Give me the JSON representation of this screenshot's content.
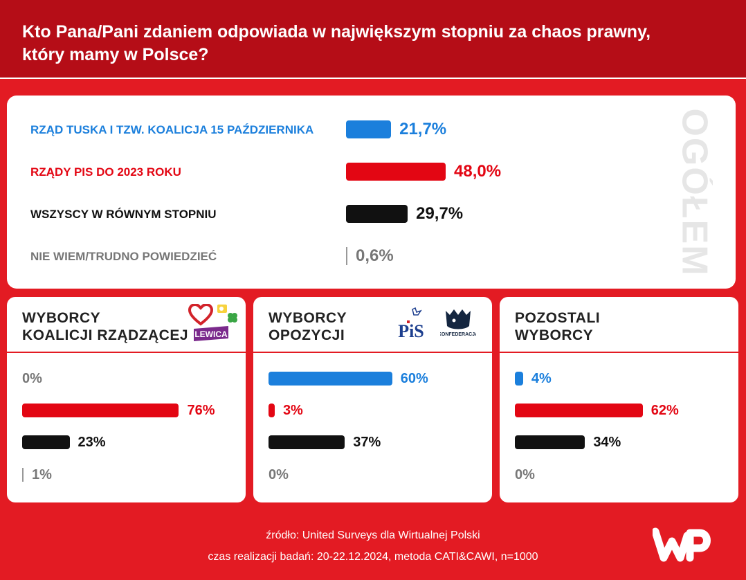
{
  "header": {
    "title_line1": "Kto Pana/Pani zdaniem odpowiada w największym stopniu za chaos prawny,",
    "title_line2": "który mamy w Polsce?"
  },
  "colors": {
    "blue": "#1b7fdc",
    "red": "#e30613",
    "black": "#111111",
    "gray": "#777777"
  },
  "chart_data": [
    {
      "type": "bar",
      "title": "OGÓŁEM",
      "categories": [
        "RZĄD TUSKA I TZW. KOALICJA 15 PAŹDZIERNIKA",
        "RZĄDY PIS DO 2023 ROKU",
        "WSZYSCY W RÓWNYM STOPNIU",
        "NIE WIEM/TRUDNO POWIEDZIEĆ"
      ],
      "values": [
        21.7,
        48.0,
        29.7,
        0.6
      ],
      "value_labels": [
        "21,7%",
        "48,0%",
        "29,7%",
        "0,6%"
      ],
      "ylim": [
        0,
        100
      ]
    },
    {
      "type": "bar",
      "title_line1": "WYBORCY",
      "title_line2": "KOALICJI RZĄDZĄCEJ",
      "values": [
        0,
        76,
        23,
        1
      ],
      "value_labels": [
        "0%",
        "76%",
        "23%",
        "1%"
      ],
      "ylim": [
        0,
        100
      ]
    },
    {
      "type": "bar",
      "title_line1": "WYBORCY",
      "title_line2": "OPOZYCJI",
      "values": [
        60,
        3,
        37,
        0
      ],
      "value_labels": [
        "60%",
        "3%",
        "37%",
        "0%"
      ],
      "ylim": [
        0,
        100
      ]
    },
    {
      "type": "bar",
      "title_line1": "POZOSTALI",
      "title_line2": "WYBORCY",
      "values": [
        4,
        62,
        34,
        0
      ],
      "value_labels": [
        "4%",
        "62%",
        "34%",
        "0%"
      ],
      "ylim": [
        0,
        100
      ]
    }
  ],
  "logos": {
    "lewica": "LEWICA",
    "pis": "PiS",
    "konfederacja": "KONFEDERACJA",
    "wp": "WP"
  },
  "footer": {
    "source": "źródło: United Surveys dla Wirtualnej Polski",
    "method": "czas realizacji badań: 20-22.12.2024, metoda CATI&CAWI, n=1000"
  }
}
